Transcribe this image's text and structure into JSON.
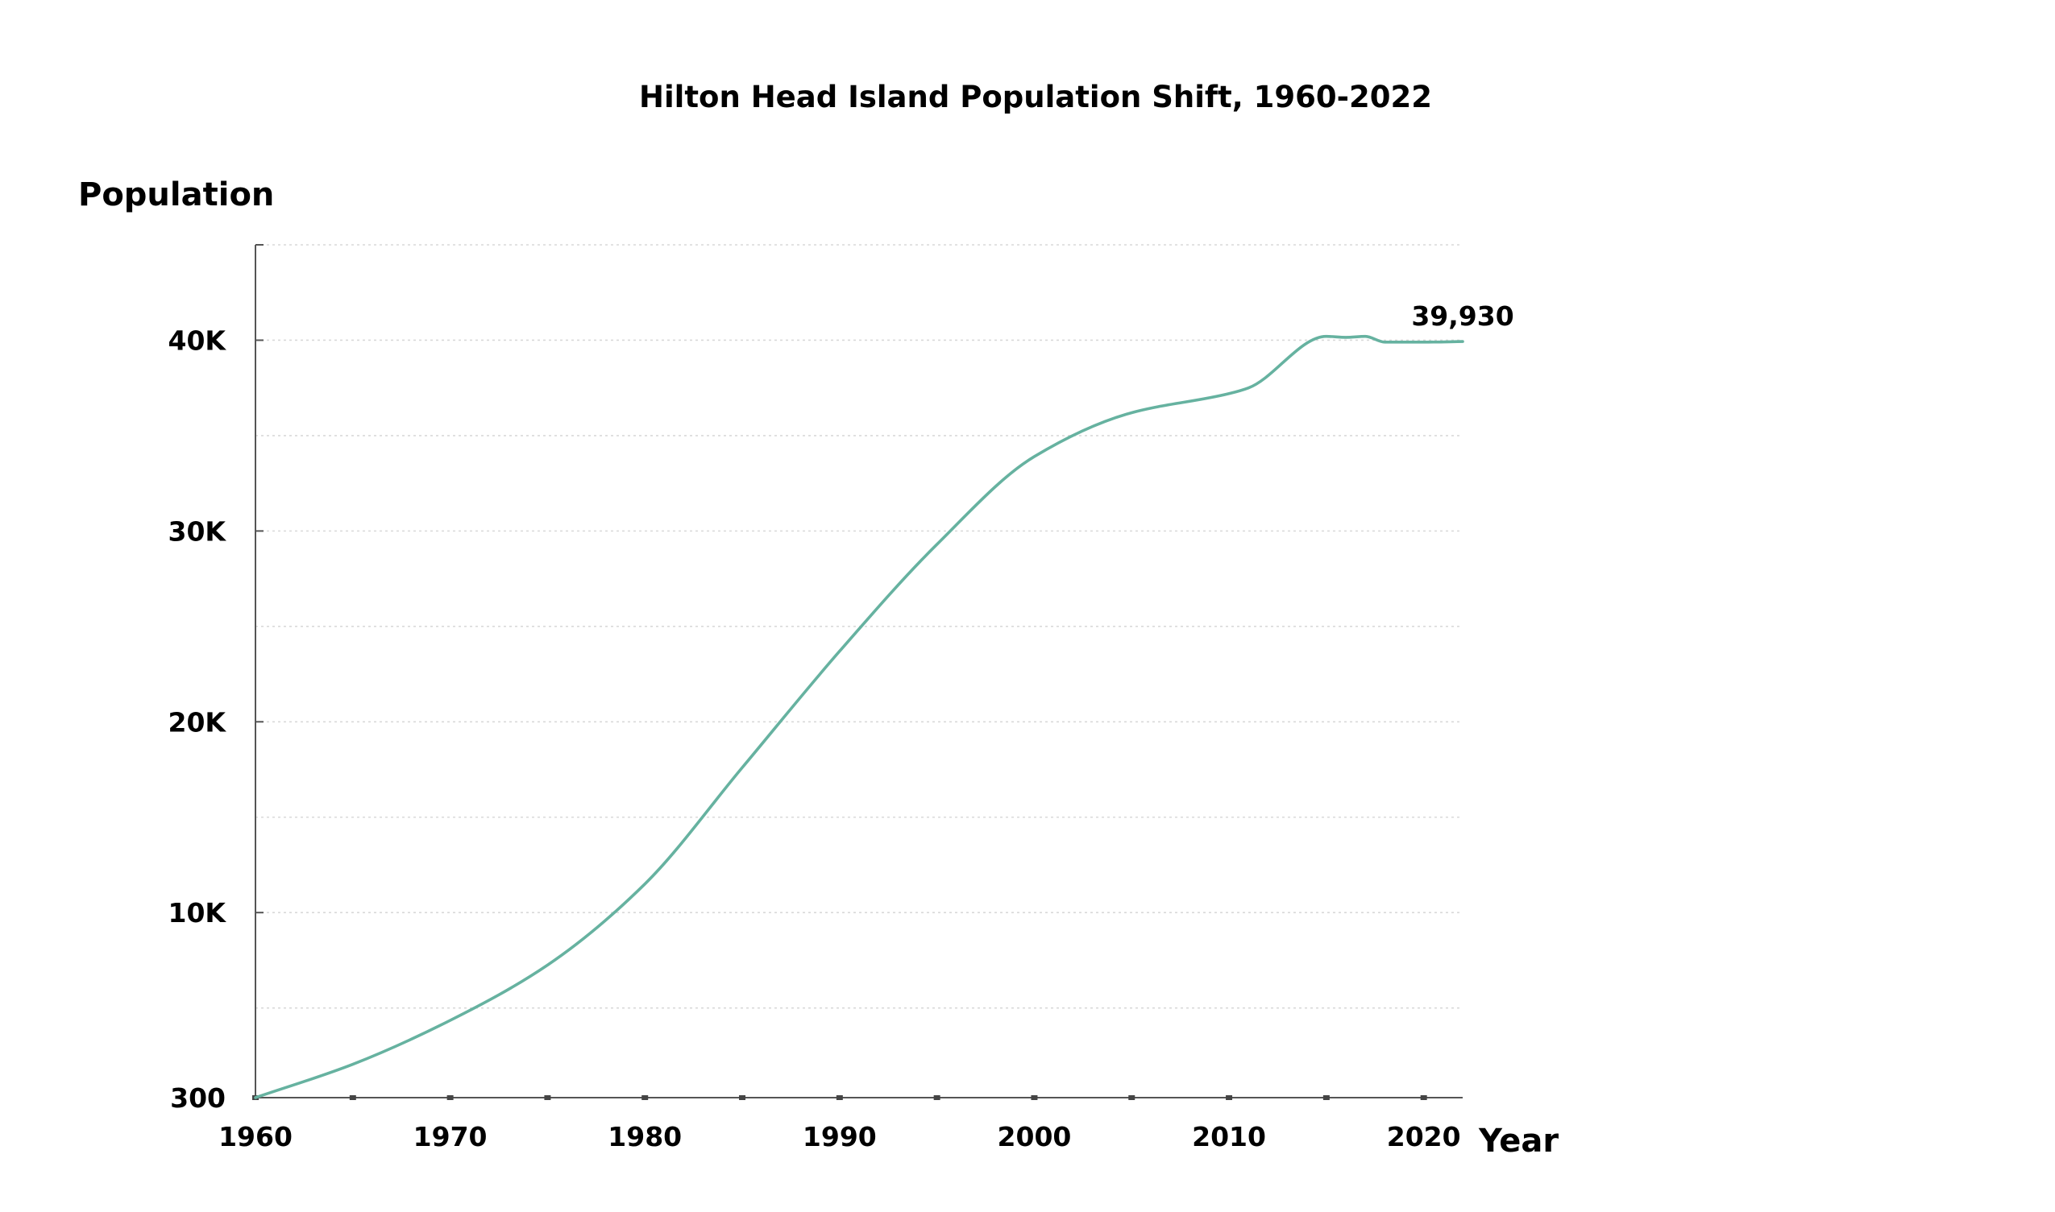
{
  "colors": {
    "series": "#66b2a0",
    "text": "#000000",
    "axis": "#555555",
    "grid": "#d9d9d9"
  },
  "chart_data": {
    "type": "line",
    "title": "Hilton Head Island Population Shift, 1960-2022",
    "xlabel": "Year",
    "ylabel": "Population",
    "xlim": [
      1960,
      2022
    ],
    "ylim": [
      300,
      45000
    ],
    "grid": true,
    "legend": "none",
    "x_ticks": [
      {
        "value": 1960,
        "label": "1960"
      },
      {
        "value": 1970,
        "label": "1970"
      },
      {
        "value": 1980,
        "label": "1980"
      },
      {
        "value": 1990,
        "label": "1990"
      },
      {
        "value": 2000,
        "label": "2000"
      },
      {
        "value": 2010,
        "label": "2010"
      },
      {
        "value": 2020,
        "label": "2020"
      }
    ],
    "x_minor_ticks": [
      1960,
      1965,
      1970,
      1975,
      1980,
      1985,
      1990,
      1995,
      2000,
      2005,
      2010,
      2015,
      2020
    ],
    "y_ticks": [
      {
        "value": 300,
        "label": "300"
      },
      {
        "value": 10000,
        "label": "10K"
      },
      {
        "value": 20000,
        "label": "20K"
      },
      {
        "value": 30000,
        "label": "30K"
      },
      {
        "value": 40000,
        "label": "40K"
      }
    ],
    "y_gridlines": [
      5000,
      10000,
      15000,
      20000,
      25000,
      30000,
      35000,
      40000,
      45000
    ],
    "series": [
      {
        "x": [
          1960,
          1965,
          1970,
          1975,
          1980,
          1985,
          1990,
          1995,
          2000,
          2005,
          2010,
          2011,
          2015,
          2016,
          2017,
          2018,
          2020,
          2022
        ],
        "values": [
          300,
          2050,
          4350,
          7250,
          11500,
          17600,
          23700,
          29300,
          33900,
          36200,
          37200,
          37500,
          40200,
          40150,
          40200,
          39900,
          39900,
          39930
        ]
      }
    ],
    "end_label": "39,930"
  }
}
